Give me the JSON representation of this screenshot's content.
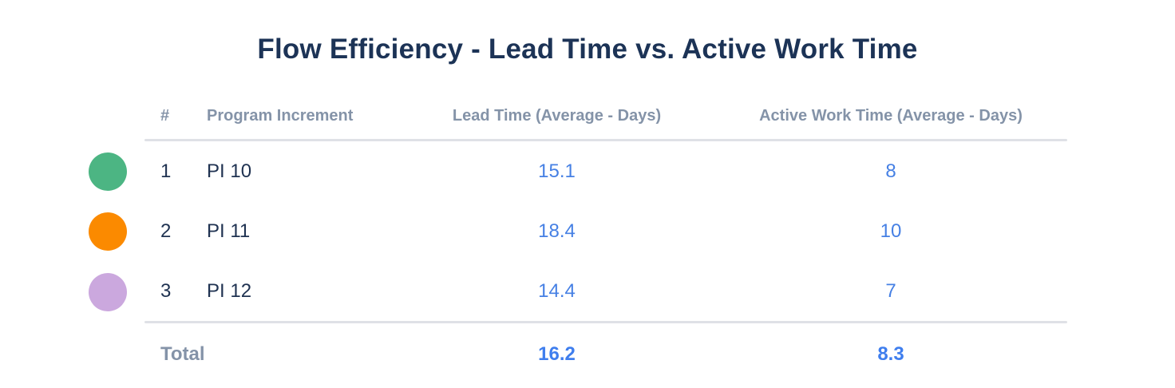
{
  "title": "Flow Efficiency - Lead Time vs. Active Work Time",
  "table": {
    "columns": {
      "index": "#",
      "program_increment": "Program Increment",
      "lead_time": "Lead Time (Average - Days)",
      "active_work_time": "Active Work Time (Average - Days)"
    },
    "rows": [
      {
        "index": "1",
        "program_increment": "PI 10",
        "lead_time": "15.1",
        "active_work_time": "8",
        "marker_color": "#4cb583"
      },
      {
        "index": "2",
        "program_increment": "PI 11",
        "lead_time": "18.4",
        "active_work_time": "10",
        "marker_color": "#fb8a00"
      },
      {
        "index": "3",
        "program_increment": "PI 12",
        "lead_time": "14.4",
        "active_work_time": "7",
        "marker_color": "#cba8de"
      }
    ],
    "total": {
      "label": "Total",
      "lead_time": "16.2",
      "active_work_time": "8.3"
    }
  },
  "colors": {
    "title_text": "#1c3356",
    "header_text": "#8493a8",
    "row_text": "#1f3251",
    "value_text": "#4680e4",
    "divider": "#dfe1e6",
    "background": "#ffffff"
  },
  "chart_data": {
    "type": "table",
    "title": "Flow Efficiency - Lead Time vs. Active Work Time",
    "categories": [
      "PI 10",
      "PI 11",
      "PI 12"
    ],
    "series": [
      {
        "name": "Lead Time (Average - Days)",
        "values": [
          15.1,
          18.4,
          14.4
        ],
        "total": 16.2
      },
      {
        "name": "Active Work Time (Average - Days)",
        "values": [
          8,
          10,
          7
        ],
        "total": 8.3
      }
    ],
    "legend_colors": [
      "#4cb583",
      "#fb8a00",
      "#cba8de"
    ],
    "legend_position": "left"
  }
}
